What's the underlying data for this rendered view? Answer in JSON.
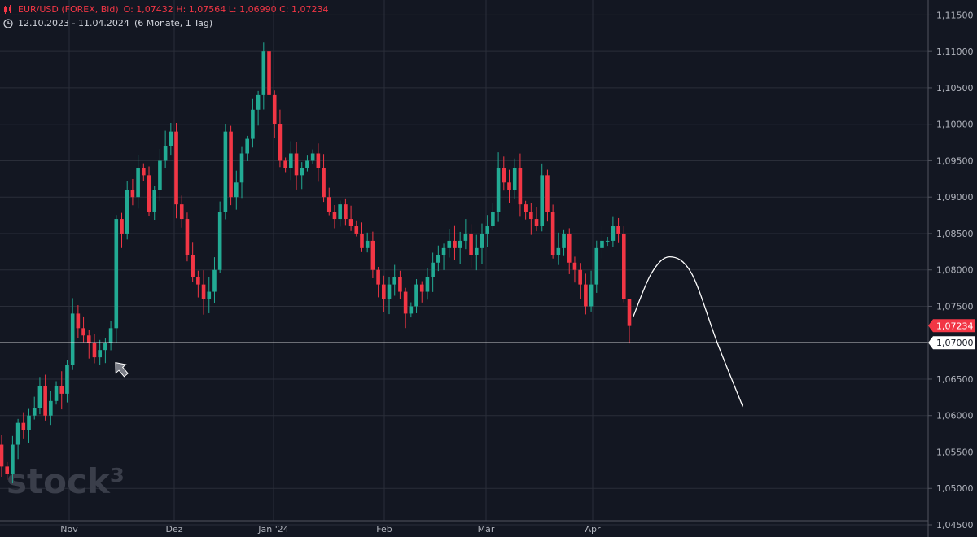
{
  "header": {
    "symbol": "EUR/USD (FOREX, Bid)",
    "ohlc": "O: 1,07432   H: 1,07564   L: 1,06990   C: 1,07234",
    "range": "12.10.2023 - 11.04.2024",
    "period": "(6 Monate, 1 Tag)"
  },
  "watermark": "stock³",
  "colors": {
    "up": "#22ab94",
    "down": "#f23645",
    "bg": "#131722",
    "grid": "#2a2e39",
    "text": "#b2b5be"
  },
  "chart_data": {
    "type": "candlestick",
    "ylim": [
      1.045,
      1.1165
    ],
    "y_ticks": [
      "1,04500",
      "1,05000",
      "1,05500",
      "1,06000",
      "1,06500",
      "1,07000",
      "1,07500",
      "1,08000",
      "1,08500",
      "1,09000",
      "1,09500",
      "1,10000",
      "1,10500",
      "1,11000",
      "1,11500"
    ],
    "x_ticks": [
      {
        "label": "Nov",
        "date": "2023-11-01"
      },
      {
        "label": "Dez",
        "date": "2023-12-01"
      },
      {
        "label": "Jan '24",
        "date": "2024-01-01"
      },
      {
        "label": "Feb",
        "date": "2024-02-01"
      },
      {
        "label": "Mär",
        "date": "2024-03-01"
      },
      {
        "label": "Apr",
        "date": "2024-04-01"
      }
    ],
    "horizontal_line": {
      "value": 1.07,
      "label": "1,07000"
    },
    "last_price": {
      "value": 1.07234,
      "label": "1,07234"
    },
    "close_sequence": [
      1.053,
      1.052,
      1.056,
      1.059,
      1.058,
      1.06,
      1.061,
      1.064,
      1.06,
      1.062,
      1.064,
      1.063,
      1.067,
      1.074,
      1.072,
      1.071,
      1.07,
      1.068,
      1.069,
      1.07,
      1.072,
      1.087,
      1.085,
      1.091,
      1.09,
      1.094,
      1.093,
      1.088,
      1.091,
      1.095,
      1.097,
      1.099,
      1.089,
      1.087,
      1.082,
      1.079,
      1.078,
      1.076,
      1.077,
      1.08,
      1.088,
      1.099,
      1.09,
      1.092,
      1.096,
      1.098,
      1.102,
      1.104,
      1.11,
      1.104,
      1.1,
      1.095,
      1.094,
      1.096,
      1.093,
      1.094,
      1.095,
      1.096,
      1.094,
      1.09,
      1.088,
      1.087,
      1.089,
      1.087,
      1.086,
      1.085,
      1.083,
      1.084,
      1.08,
      1.078,
      1.076,
      1.078,
      1.079,
      1.077,
      1.074,
      1.075,
      1.078,
      1.077,
      1.079,
      1.081,
      1.082,
      1.083,
      1.084,
      1.083,
      1.084,
      1.085,
      1.082,
      1.083,
      1.085,
      1.086,
      1.088,
      1.094,
      1.092,
      1.091,
      1.094,
      1.089,
      1.088,
      1.087,
      1.086,
      1.093,
      1.088,
      1.082,
      1.083,
      1.085,
      1.081,
      1.08,
      1.078,
      1.075,
      1.078,
      1.083,
      1.084,
      1.084,
      1.086,
      1.085,
      1.076,
      1.0723
    ],
    "forecast_curve": [
      {
        "date": "2024-04-12",
        "value": 1.0735
      },
      {
        "date": "2024-04-17",
        "value": 1.0795
      },
      {
        "date": "2024-04-22",
        "value": 1.0818
      },
      {
        "date": "2024-04-28",
        "value": 1.0795
      },
      {
        "date": "2024-05-05",
        "value": 1.07
      },
      {
        "date": "2024-05-12",
        "value": 1.0612
      }
    ]
  }
}
